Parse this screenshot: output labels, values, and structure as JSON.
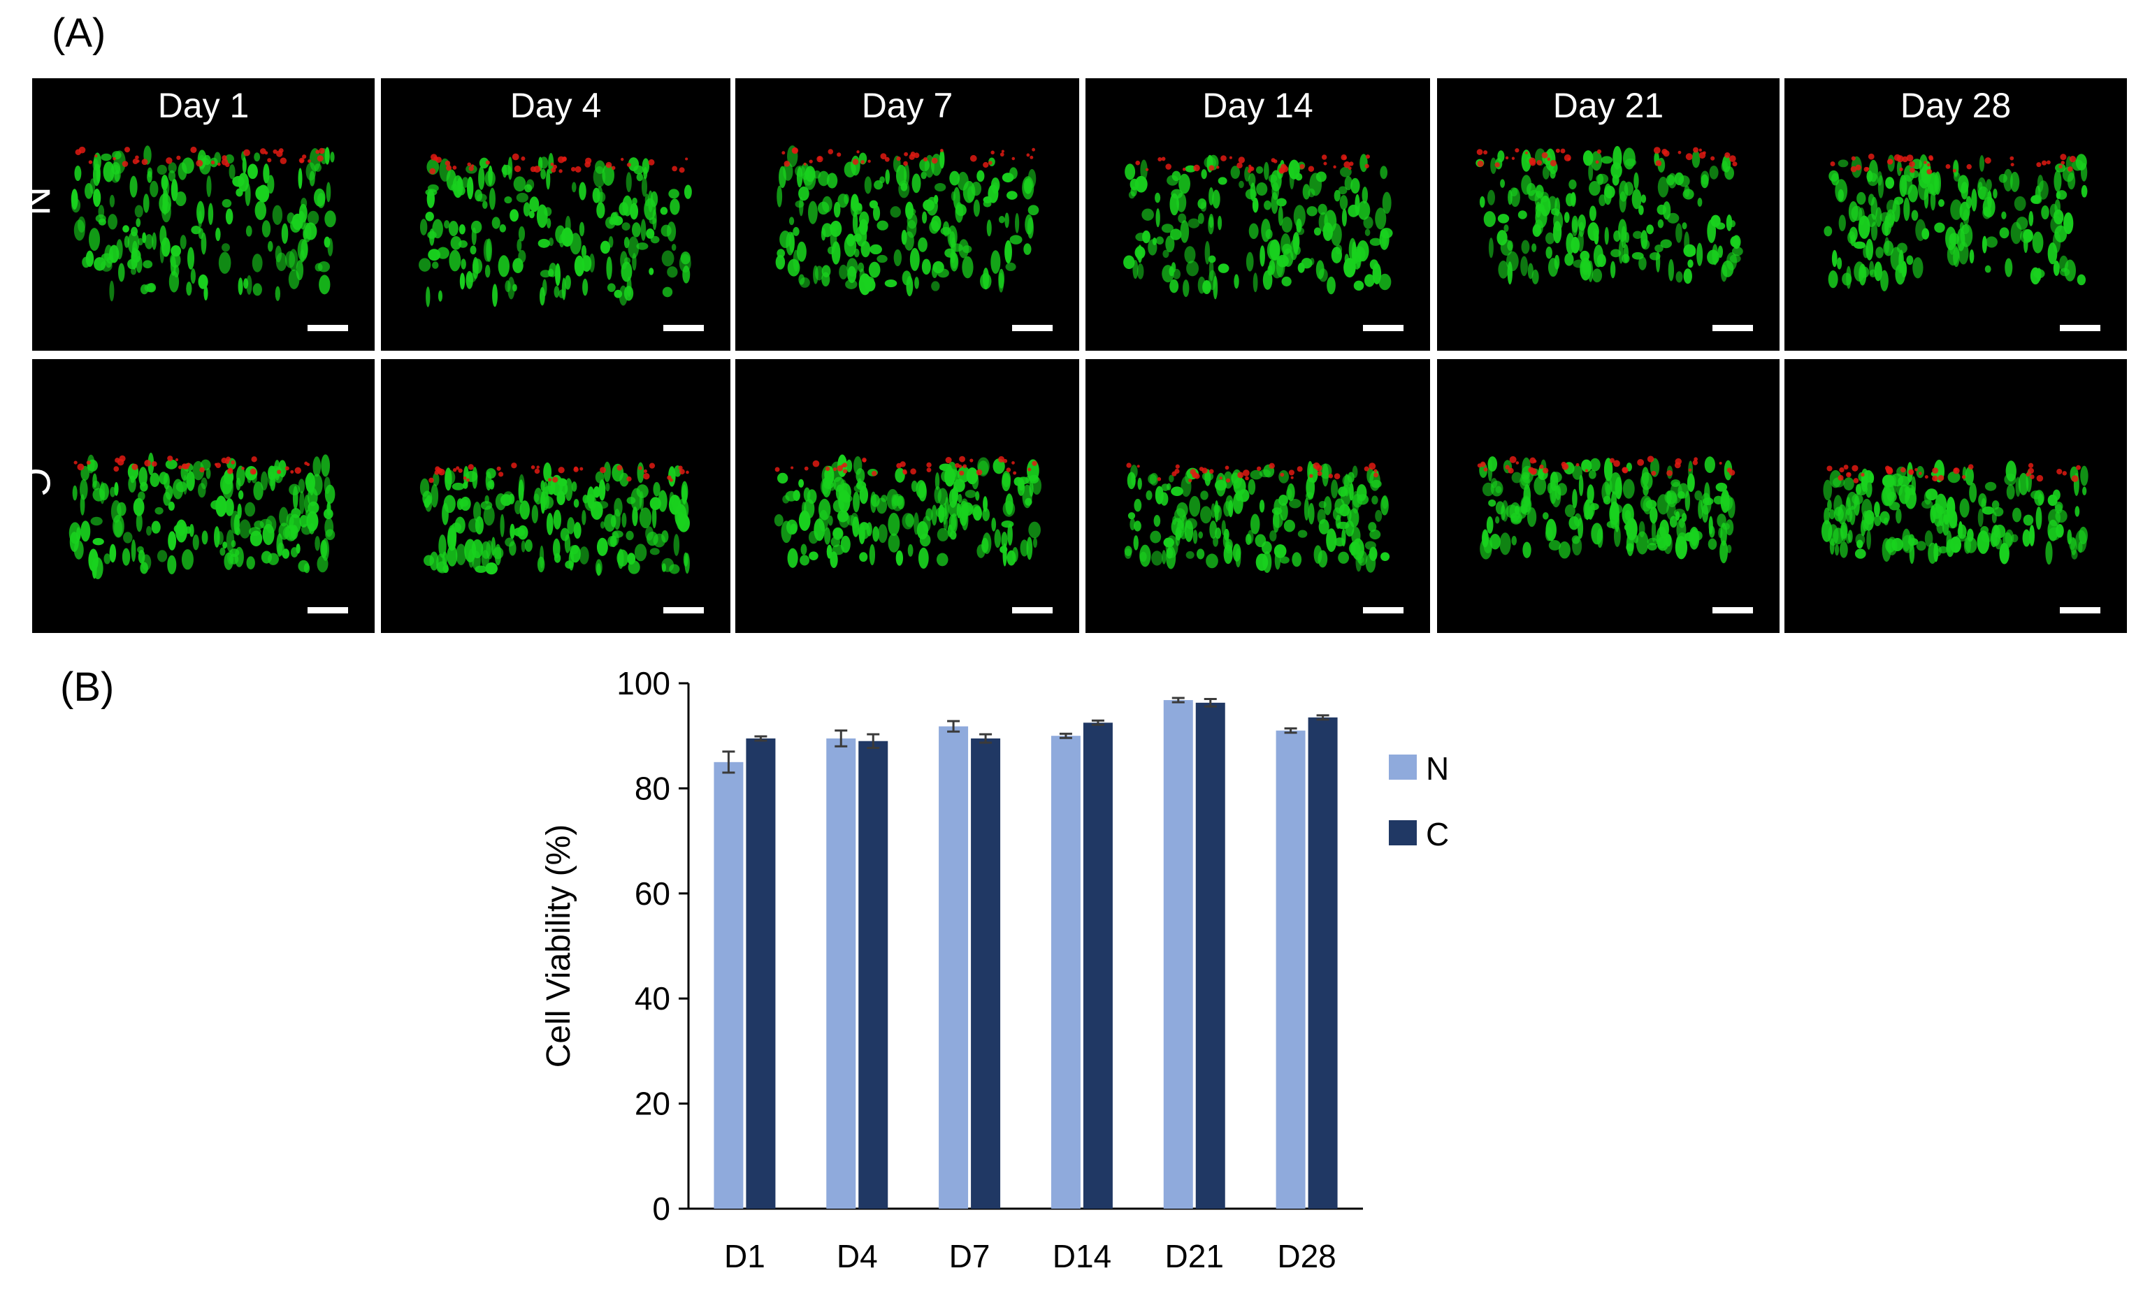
{
  "panel_a_label": "(A)",
  "panel_b_label": "(B)",
  "micrographs": {
    "days": [
      "Day 1",
      "Day 4",
      "Day 7",
      "Day 14",
      "Day 21",
      "Day 28"
    ],
    "rows": [
      "N",
      "C"
    ],
    "colors": {
      "live": "#19d21e",
      "dead": "#e01a12",
      "background": "#000000"
    }
  },
  "chart_data": {
    "type": "bar",
    "categories": [
      "D1",
      "D4",
      "D7",
      "D14",
      "D21",
      "D28"
    ],
    "series": [
      {
        "name": "N",
        "color": "#8faadc",
        "values": [
          85.0,
          89.5,
          91.8,
          90.0,
          96.8,
          91.0
        ],
        "errors": [
          2.0,
          1.5,
          1.0,
          0.4,
          0.4,
          0.4
        ]
      },
      {
        "name": "C",
        "color": "#203864",
        "values": [
          89.5,
          89.0,
          89.5,
          92.5,
          96.3,
          93.5
        ],
        "errors": [
          0.4,
          1.3,
          0.8,
          0.4,
          0.7,
          0.4
        ]
      }
    ],
    "ylabel": "Cell Viability (%)",
    "xlabel": "",
    "ylim": [
      0,
      100
    ],
    "yticks": [
      0,
      20,
      40,
      60,
      80,
      100
    ],
    "legend": "right"
  }
}
